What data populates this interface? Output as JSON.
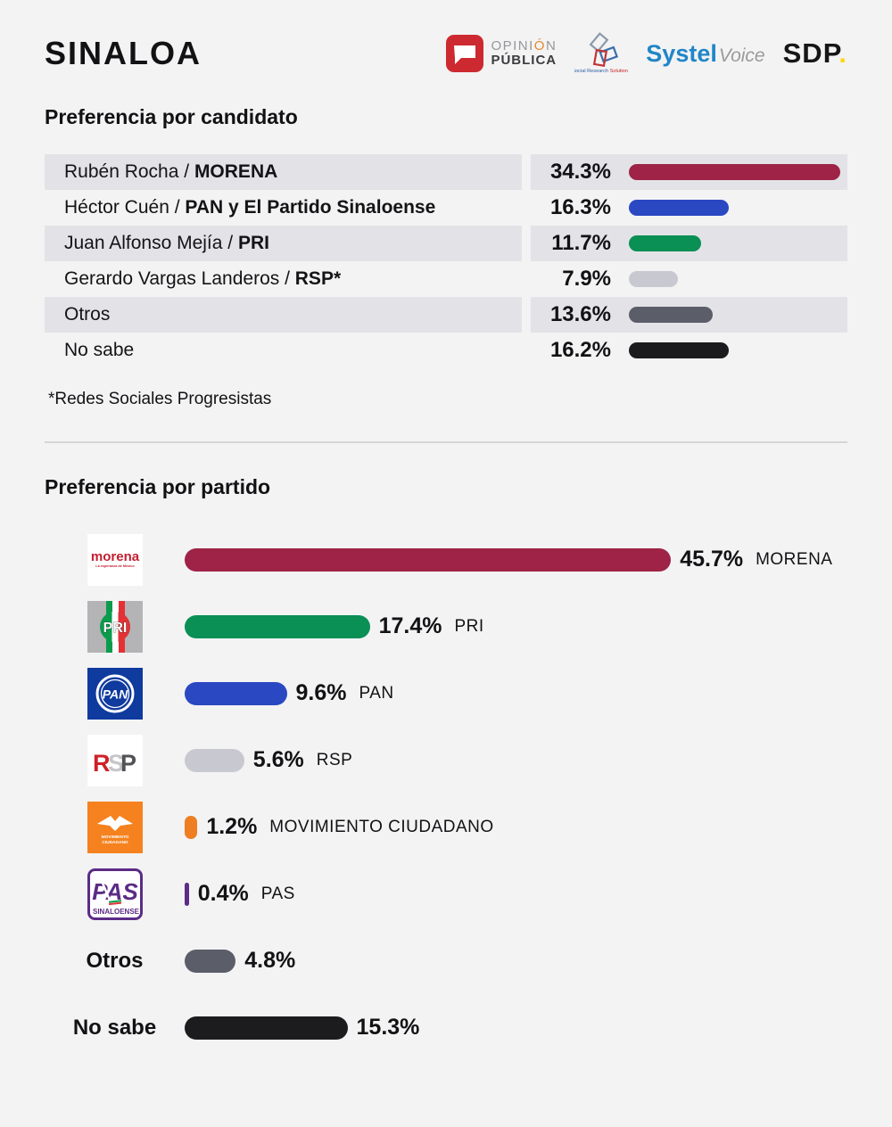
{
  "header": {
    "title": "SINALOA",
    "logos": {
      "opinion_publica": {
        "line1_pre": "OPINI",
        "line1_accent": "Ó",
        "line1_post": "N",
        "line2": "PÚBLICA"
      },
      "srs": {
        "caption1": "Social Research ",
        "caption2": "Solutions"
      },
      "systel": {
        "brand": "Systel",
        "suffix": "Voice"
      },
      "sdp": {
        "brand": "SDP",
        "dot": "."
      }
    }
  },
  "candidate_section": {
    "heading": "Preferencia por candidato",
    "footnote": "*Redes Sociales Progresistas",
    "rows": [
      {
        "label": "Rubén Rocha / ",
        "label_bold": "MORENA",
        "pct": "34.3%",
        "value": 34.3,
        "color": "#9e2347"
      },
      {
        "label": "Héctor Cuén / ",
        "label_bold": "PAN y El Partido Sinaloense",
        "pct": "16.3%",
        "value": 16.3,
        "color": "#2a48c2"
      },
      {
        "label": "Juan Alfonso Mejía / ",
        "label_bold": "PRI",
        "pct": "11.7%",
        "value": 11.7,
        "color": "#0a8f55"
      },
      {
        "label": "Gerardo Vargas Landeros / ",
        "label_bold": "RSP*",
        "pct": "7.9%",
        "value": 7.9,
        "color": "#c8c8d0"
      },
      {
        "label": "Otros",
        "label_bold": "",
        "pct": "13.6%",
        "value": 13.6,
        "color": "#5b5d68"
      },
      {
        "label": "No sabe",
        "label_bold": "",
        "pct": "16.2%",
        "value": 16.2,
        "color": "#1c1c1e"
      }
    ]
  },
  "party_section": {
    "heading": "Preferencia por partido",
    "rows": [
      {
        "party": "MORENA",
        "pct": "45.7%",
        "value": 45.7,
        "color": "#9e2347"
      },
      {
        "party": "PRI",
        "pct": "17.4%",
        "value": 17.4,
        "color": "#0a8f55"
      },
      {
        "party": "PAN",
        "pct": "9.6%",
        "value": 9.6,
        "color": "#2a48c2"
      },
      {
        "party": "RSP",
        "pct": "5.6%",
        "value": 5.6,
        "color": "#c8c8d0"
      },
      {
        "party": "MOVIMIENTO CIUDADANO",
        "pct": "1.2%",
        "value": 1.2,
        "color": "#ef7d22"
      },
      {
        "party": "PAS",
        "pct": "0.4%",
        "value": 0.4,
        "color": "#5c2d87"
      },
      {
        "text_label": "Otros",
        "pct": "4.8%",
        "value": 4.8,
        "color": "#5b5d68"
      },
      {
        "text_label": "No sabe",
        "pct": "15.3%",
        "value": 15.3,
        "color": "#1c1c1e"
      }
    ]
  },
  "logo_texts": {
    "morena": {
      "main": "morena",
      "sub": "La esperanza de México"
    },
    "pri": {
      "letters": "PRI"
    },
    "pan": {
      "letters": "PAN"
    },
    "rsp": {
      "r": "R",
      "s": "S",
      "p": "P"
    },
    "mc": {
      "line1": "MOVIMIENTO",
      "line2": "CIUDADANO"
    },
    "pas": {
      "letters": "PAS",
      "sub": "SINALOENSE"
    }
  },
  "chart_data": [
    {
      "type": "bar",
      "orientation": "horizontal",
      "title": "Preferencia por candidato",
      "categories": [
        "Rubén Rocha / MORENA",
        "Héctor Cuén / PAN y El Partido Sinaloense",
        "Juan Alfonso Mejía / PRI",
        "Gerardo Vargas Landeros / RSP*",
        "Otros",
        "No sabe"
      ],
      "values": [
        34.3,
        16.3,
        11.7,
        7.9,
        13.6,
        16.2
      ],
      "unit": "%",
      "colors": [
        "#9e2347",
        "#2a48c2",
        "#0a8f55",
        "#c8c8d0",
        "#5b5d68",
        "#1c1c1e"
      ],
      "footnote": "*Redes Sociales Progresistas",
      "grid": false,
      "data_labels": true
    },
    {
      "type": "bar",
      "orientation": "horizontal",
      "title": "Preferencia por partido",
      "categories": [
        "MORENA",
        "PRI",
        "PAN",
        "RSP",
        "MOVIMIENTO CIUDADANO",
        "PAS",
        "Otros",
        "No sabe"
      ],
      "values": [
        45.7,
        17.4,
        9.6,
        5.6,
        1.2,
        0.4,
        4.8,
        15.3
      ],
      "unit": "%",
      "colors": [
        "#9e2347",
        "#0a8f55",
        "#2a48c2",
        "#c8c8d0",
        "#ef7d22",
        "#5c2d87",
        "#5b5d68",
        "#1c1c1e"
      ],
      "grid": false,
      "data_labels": true
    }
  ]
}
